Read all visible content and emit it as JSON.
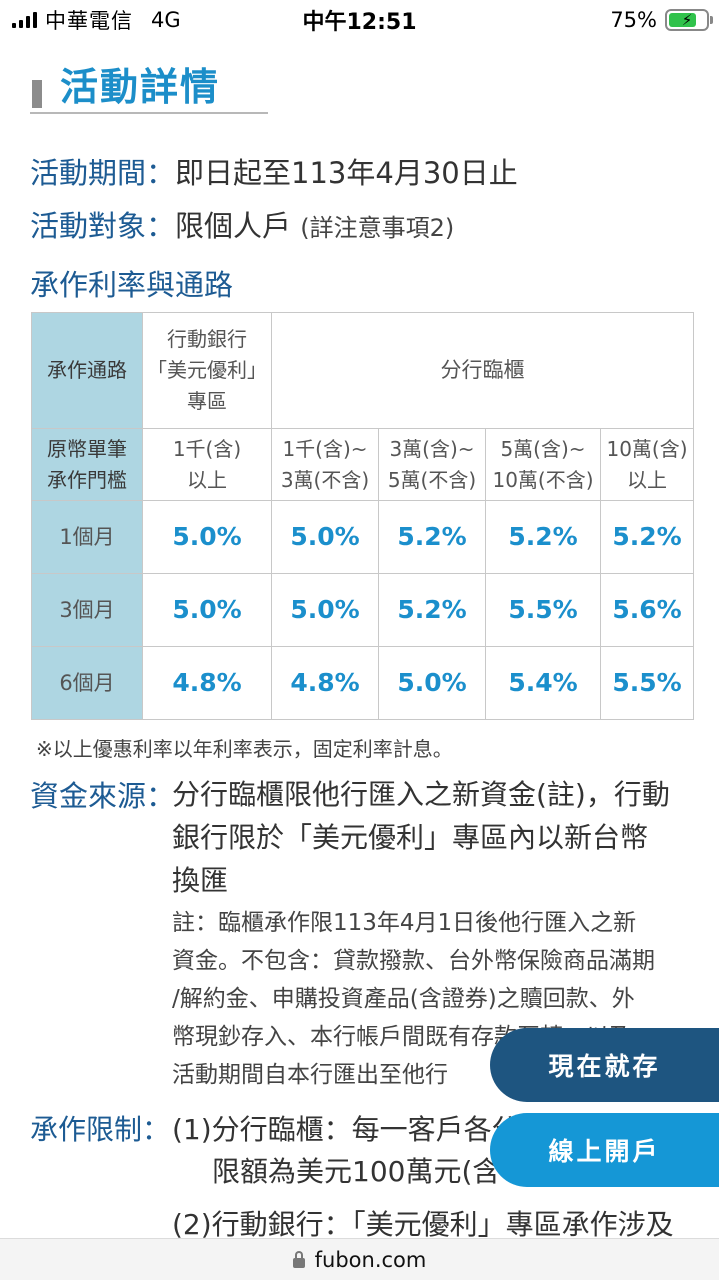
{
  "status_bar": {
    "carrier": "中華電信",
    "network": "4G",
    "time": "中午12:51",
    "battery": "75%",
    "battery_level": 0.75,
    "battery_icon": "charging-bolt-icon"
  },
  "heading": "活動詳情",
  "period": {
    "label": "活動期間：",
    "value": "即日起至113年4月30日止"
  },
  "target": {
    "label": "活動對象：",
    "value": "限個人戶",
    "note": "(詳注意事項2)"
  },
  "rates_heading": "承作利率與通路",
  "table": {
    "channel_header": "承作通路",
    "mobile_header": [
      "行動銀行",
      "「美元優利」",
      "專區"
    ],
    "branch_header": "分行臨櫃",
    "threshold_header": [
      "原幣單筆",
      "承作門檻"
    ],
    "thresholds": [
      [
        "1千(含)",
        "以上"
      ],
      [
        "1千(含)~",
        "3萬(不含)"
      ],
      [
        "3萬(含)~",
        "5萬(不含)"
      ],
      [
        "5萬(含)~",
        "10萬(不含)"
      ],
      [
        "10萬(含)",
        "以上"
      ]
    ],
    "rows": [
      {
        "term": "1個月",
        "rates": [
          "5.0%",
          "5.0%",
          "5.2%",
          "5.2%",
          "5.2%"
        ]
      },
      {
        "term": "3個月",
        "rates": [
          "5.0%",
          "5.0%",
          "5.2%",
          "5.5%",
          "5.6%"
        ]
      },
      {
        "term": "6個月",
        "rates": [
          "4.8%",
          "4.8%",
          "5.0%",
          "5.4%",
          "5.5%"
        ]
      }
    ]
  },
  "table_note": "※以上優惠利率以年利率表示，固定利率計息。",
  "fund_source": {
    "label": "資金來源：",
    "lines": [
      "分行臨櫃限他行匯入之新資金(註)，行動",
      "銀行限於「美元優利」專區內以新台幣",
      "換匯"
    ],
    "note_lines": [
      "註：臨櫃承作限113年4月1日後他行匯入之新",
      "資金。不包含：貸款撥款、台外幣保險商品滿期",
      "/解約金、申購投資產品(含證券)之贖回款、外",
      "幣現鈔存入、本行帳戶間既有存款互轉，以及",
      "活動期間自本行匯出至他行"
    ]
  },
  "limit": {
    "label": "承作限制：",
    "lines": [
      "(1)分行臨櫃：每一客戶各分行限期最高",
      "限額為美元100萬元(含",
      "(2)行動銀行：「美元優利」專區承作涉及"
    ]
  },
  "buttons": {
    "deposit": "現在就存",
    "open_account": "線上開戶"
  },
  "url": "fubon.com"
}
